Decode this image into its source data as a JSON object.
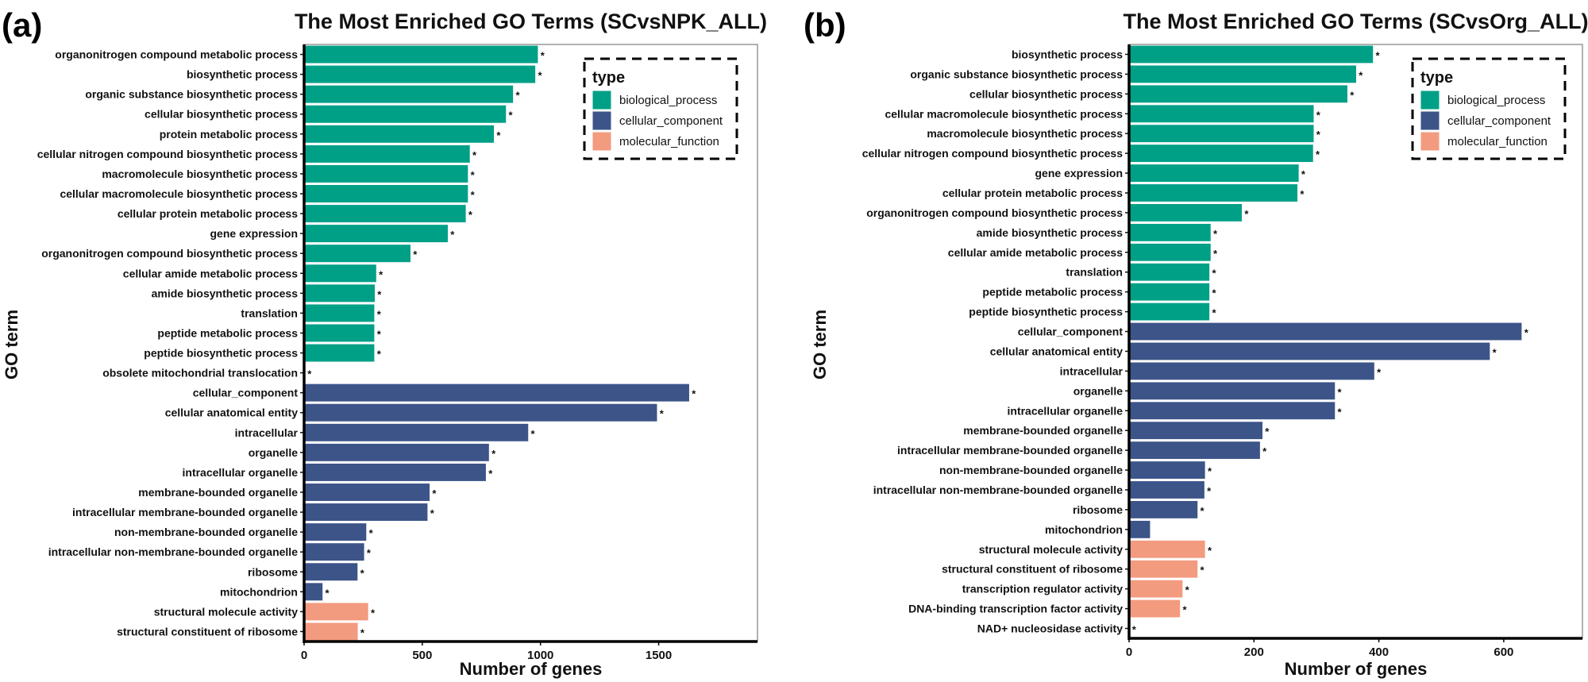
{
  "chart_data": [
    {
      "type": "bar",
      "orientation": "horizontal",
      "panel_label": "(a)",
      "title": "The Most Enriched GO Terms (SCvsNPK_ALL)",
      "xlabel": "Number of genes",
      "ylabel": "GO term",
      "xlim": [
        0,
        1918
      ],
      "xticks": [
        "0",
        "500",
        "1000",
        "1500"
      ],
      "grid": false,
      "legend": {
        "title": "type",
        "placement": "top-right",
        "entries": [
          {
            "label": "biological_process",
            "color": "#00A087"
          },
          {
            "label": "cellular_component",
            "color": "#3C5488"
          },
          {
            "label": "molecular_function",
            "color": "#F39B7F"
          }
        ]
      },
      "bars": [
        {
          "term": "organonitrogen compound metabolic process",
          "value": 990,
          "type": "biological_process",
          "marker": "*"
        },
        {
          "term": "biosynthetic process",
          "value": 979,
          "type": "biological_process",
          "marker": "*"
        },
        {
          "term": "organic substance biosynthetic process",
          "value": 885,
          "type": "biological_process",
          "marker": "*"
        },
        {
          "term": "cellular biosynthetic process",
          "value": 855,
          "type": "biological_process",
          "marker": "*"
        },
        {
          "term": "protein metabolic process",
          "value": 804,
          "type": "biological_process",
          "marker": "*"
        },
        {
          "term": "cellular nitrogen compound biosynthetic process",
          "value": 702,
          "type": "biological_process",
          "marker": "*"
        },
        {
          "term": "macromolecule biosynthetic process",
          "value": 694,
          "type": "biological_process",
          "marker": "*"
        },
        {
          "term": "cellular macromolecule biosynthetic process",
          "value": 694,
          "type": "biological_process",
          "marker": "*"
        },
        {
          "term": "cellular protein metabolic process",
          "value": 685,
          "type": "biological_process",
          "marker": "*"
        },
        {
          "term": "gene expression",
          "value": 609,
          "type": "biological_process",
          "marker": "*"
        },
        {
          "term": "organonitrogen compound biosynthetic process",
          "value": 451,
          "type": "biological_process",
          "marker": "*"
        },
        {
          "term": "cellular amide metabolic process",
          "value": 306,
          "type": "biological_process",
          "marker": "*"
        },
        {
          "term": "amide biosynthetic process",
          "value": 300,
          "type": "biological_process",
          "marker": "*"
        },
        {
          "term": "translation",
          "value": 298,
          "type": "biological_process",
          "marker": "*"
        },
        {
          "term": "peptide metabolic process",
          "value": 298,
          "type": "biological_process",
          "marker": "*"
        },
        {
          "term": "peptide biosynthetic process",
          "value": 298,
          "type": "biological_process",
          "marker": "*"
        },
        {
          "term": "obsolete mitochondrial translocation",
          "value": 4,
          "type": "biological_process",
          "marker": "*"
        },
        {
          "term": "cellular_component",
          "value": 1630,
          "type": "cellular_component",
          "marker": "*"
        },
        {
          "term": "cellular anatomical entity",
          "value": 1494,
          "type": "cellular_component",
          "marker": "*"
        },
        {
          "term": "intracellular",
          "value": 949,
          "type": "cellular_component",
          "marker": "*"
        },
        {
          "term": "organelle",
          "value": 783,
          "type": "cellular_component",
          "marker": "*"
        },
        {
          "term": "intracellular organelle",
          "value": 770,
          "type": "cellular_component",
          "marker": "*"
        },
        {
          "term": "membrane-bounded organelle",
          "value": 532,
          "type": "cellular_component",
          "marker": "*"
        },
        {
          "term": "intracellular membrane-bounded organelle",
          "value": 523,
          "type": "cellular_component",
          "marker": "*"
        },
        {
          "term": "non-membrane-bounded organelle",
          "value": 264,
          "type": "cellular_component",
          "marker": "*"
        },
        {
          "term": "intracellular non-membrane-bounded organelle",
          "value": 255,
          "type": "cellular_component",
          "marker": "*"
        },
        {
          "term": "ribosome",
          "value": 227,
          "type": "cellular_component",
          "marker": "*"
        },
        {
          "term": "mitochondrion",
          "value": 79,
          "type": "cellular_component",
          "marker": "*"
        },
        {
          "term": "structural molecule activity",
          "value": 272,
          "type": "molecular_function",
          "marker": "*"
        },
        {
          "term": "structural constituent of ribosome",
          "value": 228,
          "type": "molecular_function",
          "marker": "*"
        }
      ]
    },
    {
      "type": "bar",
      "orientation": "horizontal",
      "panel_label": "(b)",
      "title": "The Most Enriched GO Terms (SCvsOrg_ALL)",
      "xlabel": "Number of genes",
      "ylabel": "GO term",
      "xlim": [
        0,
        726
      ],
      "xticks": [
        "0",
        "200",
        "400",
        "600"
      ],
      "grid": false,
      "legend": {
        "title": "type",
        "placement": "top-right",
        "entries": [
          {
            "label": "biological_process",
            "color": "#00A087"
          },
          {
            "label": "cellular_component",
            "color": "#3C5488"
          },
          {
            "label": "molecular_function",
            "color": "#F39B7F"
          }
        ]
      },
      "bars": [
        {
          "term": "biosynthetic process",
          "value": 391,
          "type": "biological_process",
          "marker": "*"
        },
        {
          "term": "organic substance biosynthetic process",
          "value": 364,
          "type": "biological_process",
          "marker": "*"
        },
        {
          "term": "cellular biosynthetic process",
          "value": 350,
          "type": "biological_process",
          "marker": "*"
        },
        {
          "term": "cellular macromolecule biosynthetic process",
          "value": 296,
          "type": "biological_process",
          "marker": "*"
        },
        {
          "term": "macromolecule biosynthetic process",
          "value": 296,
          "type": "biological_process",
          "marker": "*"
        },
        {
          "term": "cellular nitrogen compound biosynthetic process",
          "value": 295,
          "type": "biological_process",
          "marker": "*"
        },
        {
          "term": "gene expression",
          "value": 272,
          "type": "biological_process",
          "marker": "*"
        },
        {
          "term": "cellular protein metabolic process",
          "value": 270,
          "type": "biological_process",
          "marker": "*"
        },
        {
          "term": "organonitrogen compound biosynthetic process",
          "value": 181,
          "type": "biological_process",
          "marker": "*"
        },
        {
          "term": "amide biosynthetic process",
          "value": 131,
          "type": "biological_process",
          "marker": "*"
        },
        {
          "term": "cellular amide metabolic process",
          "value": 131,
          "type": "biological_process",
          "marker": "*"
        },
        {
          "term": "translation",
          "value": 129,
          "type": "biological_process",
          "marker": "*"
        },
        {
          "term": "peptide metabolic process",
          "value": 129,
          "type": "biological_process",
          "marker": "*"
        },
        {
          "term": "peptide biosynthetic process",
          "value": 129,
          "type": "biological_process",
          "marker": "*"
        },
        {
          "term": "cellular_component",
          "value": 629,
          "type": "cellular_component",
          "marker": "*"
        },
        {
          "term": "cellular anatomical entity",
          "value": 578,
          "type": "cellular_component",
          "marker": "*"
        },
        {
          "term": "intracellular",
          "value": 393,
          "type": "cellular_component",
          "marker": "*"
        },
        {
          "term": "organelle",
          "value": 330,
          "type": "cellular_component",
          "marker": "*"
        },
        {
          "term": "intracellular organelle",
          "value": 330,
          "type": "cellular_component",
          "marker": "*"
        },
        {
          "term": "membrane-bounded organelle",
          "value": 214,
          "type": "cellular_component",
          "marker": "*"
        },
        {
          "term": "intracellular membrane-bounded organelle",
          "value": 210,
          "type": "cellular_component",
          "marker": "*"
        },
        {
          "term": "non-membrane-bounded organelle",
          "value": 122,
          "type": "cellular_component",
          "marker": "*"
        },
        {
          "term": "intracellular non-membrane-bounded organelle",
          "value": 121,
          "type": "cellular_component",
          "marker": "*"
        },
        {
          "term": "ribosome",
          "value": 110,
          "type": "cellular_component",
          "marker": "*"
        },
        {
          "term": "mitochondrion",
          "value": 34,
          "type": "cellular_component",
          "marker": ""
        },
        {
          "term": "structural molecule activity",
          "value": 122,
          "type": "molecular_function",
          "marker": "*"
        },
        {
          "term": "structural constituent of ribosome",
          "value": 110,
          "type": "molecular_function",
          "marker": "*"
        },
        {
          "term": "transcription regulator activity",
          "value": 86,
          "type": "molecular_function",
          "marker": "*"
        },
        {
          "term": "DNA-binding transcription factor activity",
          "value": 82,
          "type": "molecular_function",
          "marker": "*"
        },
        {
          "term": "NAD+ nucleosidase activity",
          "value": 1,
          "type": "molecular_function",
          "marker": "*"
        }
      ]
    }
  ]
}
